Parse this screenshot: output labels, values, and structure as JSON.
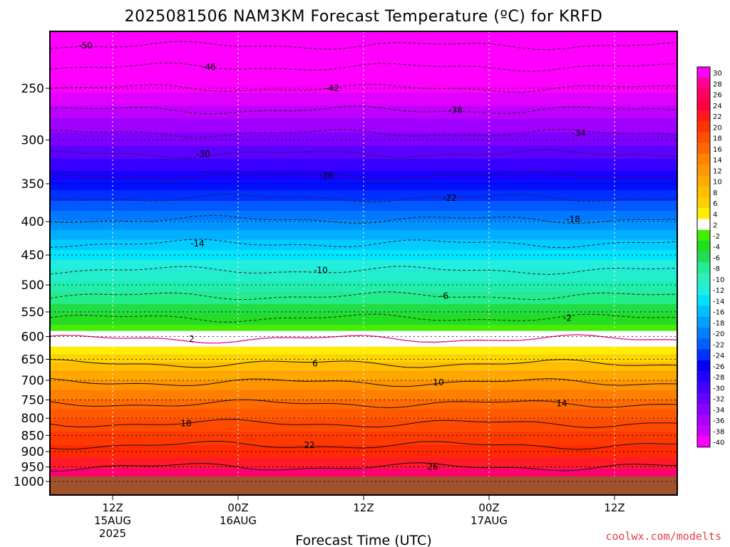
{
  "chart_data": {
    "type": "heatmap",
    "title": "2025081506 NAM3KM Forecast Temperature (ºC) for KRFD",
    "xlabel": "Forecast Time (UTC)",
    "ylabel": "",
    "credit": "coolwx.com/modelts",
    "y_ticks": [
      "250",
      "300",
      "350",
      "400",
      "450",
      "500",
      "550",
      "600",
      "650",
      "700",
      "750",
      "800",
      "850",
      "900",
      "950",
      "1000"
    ],
    "x_ticks": [
      {
        "line1": "12Z",
        "line2": "15AUG",
        "line3": "2025"
      },
      {
        "line1": "00Z",
        "line2": "16AUG",
        "line3": ""
      },
      {
        "line1": "12Z",
        "line2": "",
        "line3": ""
      },
      {
        "line1": "00Z",
        "line2": "17AUG",
        "line3": ""
      },
      {
        "line1": "12Z",
        "line2": "",
        "line3": ""
      }
    ],
    "colorbar": {
      "labels": [
        "30",
        "28",
        "26",
        "24",
        "22",
        "20",
        "18",
        "16",
        "14",
        "12",
        "10",
        "8",
        "6",
        "4",
        "2",
        "-2",
        "-4",
        "-6",
        "-8",
        "-10",
        "-12",
        "-14",
        "-16",
        "-18",
        "-20",
        "-22",
        "-24",
        "-26",
        "-28",
        "-30",
        "-32",
        "-34",
        "-36",
        "-38",
        "-40"
      ],
      "colors": [
        "#ff00ff",
        "#ff0090",
        "#ff0060",
        "#ff0040",
        "#ff1a1a",
        "#ff3300",
        "#ff5000",
        "#ff6a00",
        "#ff8400",
        "#ff9800",
        "#ffaa00",
        "#ffbf00",
        "#ffd000",
        "#ffee00",
        "#ffffff",
        "#44ee00",
        "#22dd22",
        "#22dd55",
        "#22ee99",
        "#33eebb",
        "#22eedd",
        "#00e0ff",
        "#00c0ff",
        "#00a0ff",
        "#0080ff",
        "#0060ff",
        "#0030ff",
        "#0000ee",
        "#2200ff",
        "#4400ff",
        "#6600ff",
        "#8800ff",
        "#aa00ff",
        "#cc00ff",
        "#ff00ff"
      ]
    },
    "isotherms": [
      {
        "label": "-50",
        "pressure": 215
      },
      {
        "label": "-46",
        "pressure": 232
      },
      {
        "label": "-42",
        "pressure": 250
      },
      {
        "label": "-38",
        "pressure": 270
      },
      {
        "label": "-34",
        "pressure": 293
      },
      {
        "label": "-30",
        "pressure": 315
      },
      {
        "label": "-26",
        "pressure": 340
      },
      {
        "label": "-22",
        "pressure": 368
      },
      {
        "label": "-18",
        "pressure": 397
      },
      {
        "label": "-14",
        "pressure": 432
      },
      {
        "label": "-10",
        "pressure": 475
      },
      {
        "label": "-6",
        "pressure": 520
      },
      {
        "label": "-2",
        "pressure": 562
      },
      {
        "label": "2",
        "pressure": 605
      },
      {
        "label": "6",
        "pressure": 660
      },
      {
        "label": "10",
        "pressure": 705
      },
      {
        "label": "14",
        "pressure": 760
      },
      {
        "label": "18",
        "pressure": 815
      },
      {
        "label": "22",
        "pressure": 880
      },
      {
        "label": "26",
        "pressure": 950
      }
    ],
    "legend": "right",
    "grid": true
  }
}
